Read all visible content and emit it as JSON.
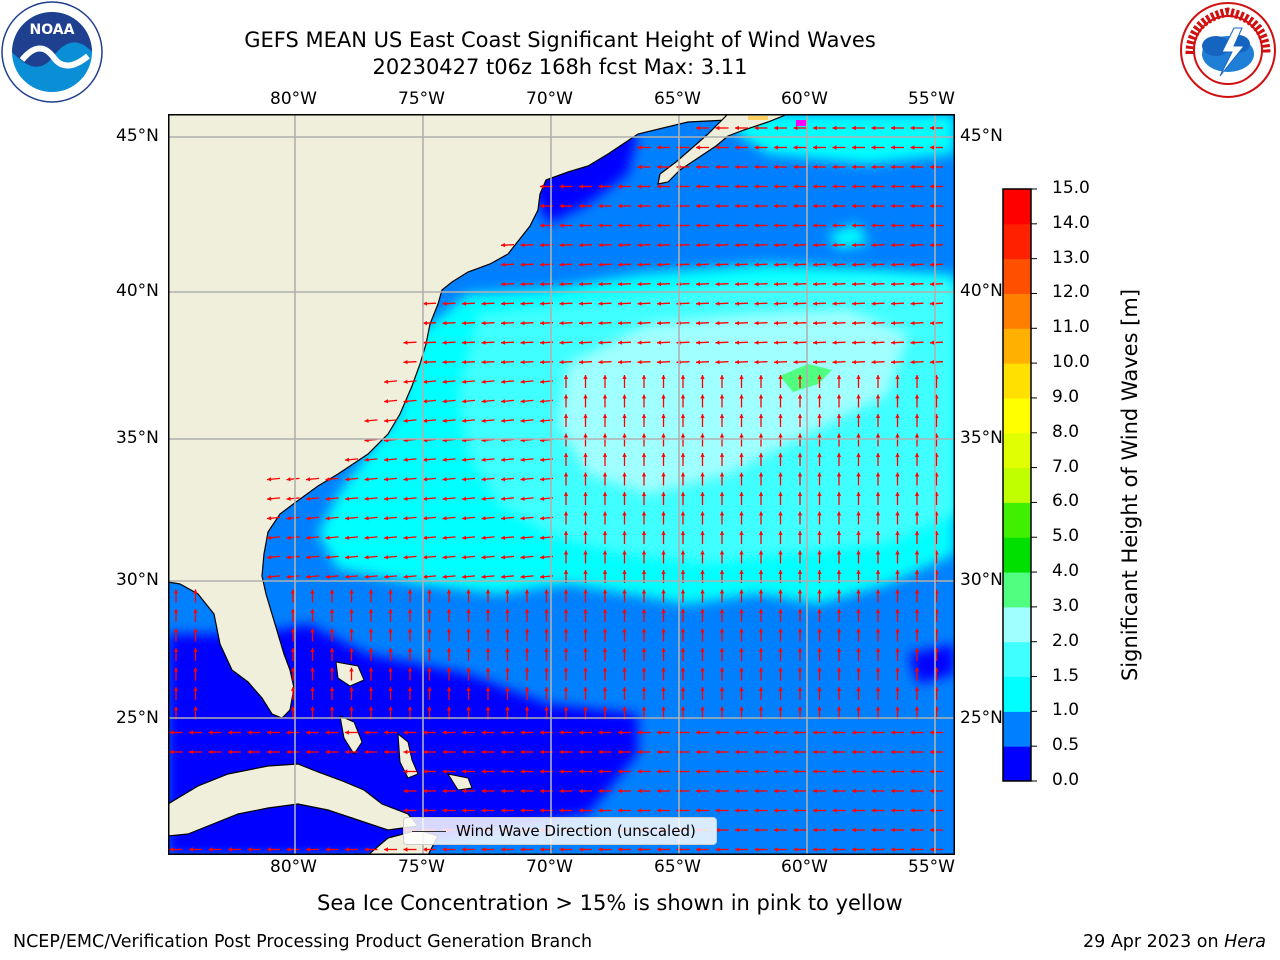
{
  "title": {
    "line1": "GEFS MEAN US East Coast Significant Height of Wind Waves",
    "line2": "20230427 t06z 168h fcst   Max: 3.11"
  },
  "map": {
    "lon_labels": [
      "80°W",
      "75°W",
      "70°W",
      "65°W",
      "60°W",
      "55°W"
    ],
    "lat_labels": [
      "45°N",
      "40°N",
      "35°N",
      "30°N",
      "25°N"
    ],
    "legend_label": "Wind Wave Direction (unscaled)",
    "arrow_color": "#ff0000",
    "land_color": "#efefdc"
  },
  "colorbar": {
    "label": "Significant Height of Wind Waves [m]",
    "ticks": [
      "0.0",
      "0.5",
      "1.0",
      "1.5",
      "2.0",
      "3.0",
      "4.0",
      "5.0",
      "6.0",
      "7.0",
      "8.0",
      "9.0",
      "10.0",
      "11.0",
      "12.0",
      "13.0",
      "14.0",
      "15.0"
    ],
    "colors": [
      "#0000ff",
      "#0080ff",
      "#00ffff",
      "#40ffff",
      "#a0ffff",
      "#50ff80",
      "#00e000",
      "#40f000",
      "#c0ff00",
      "#e0ff00",
      "#ffff00",
      "#ffe000",
      "#ffb000",
      "#ff8000",
      "#ff5000",
      "#ff2000",
      "#ff0000"
    ]
  },
  "note": "Sea Ice Concentration > 15% is shown in pink to yellow",
  "footer": {
    "left": "NCEP/EMC/Verification Post Processing Product Generation Branch",
    "date": "29 Apr 2023 on ",
    "host": "Hera"
  },
  "logos": {
    "noaa_text": "NOAA",
    "noaa_ring": "NATIONAL OCEANIC AND ATMOSPHERIC ADMINISTRATION · U.S. DEPARTMENT OF COMMERCE",
    "nws_ring": "NATIONAL WEATHER SERVICE"
  }
}
